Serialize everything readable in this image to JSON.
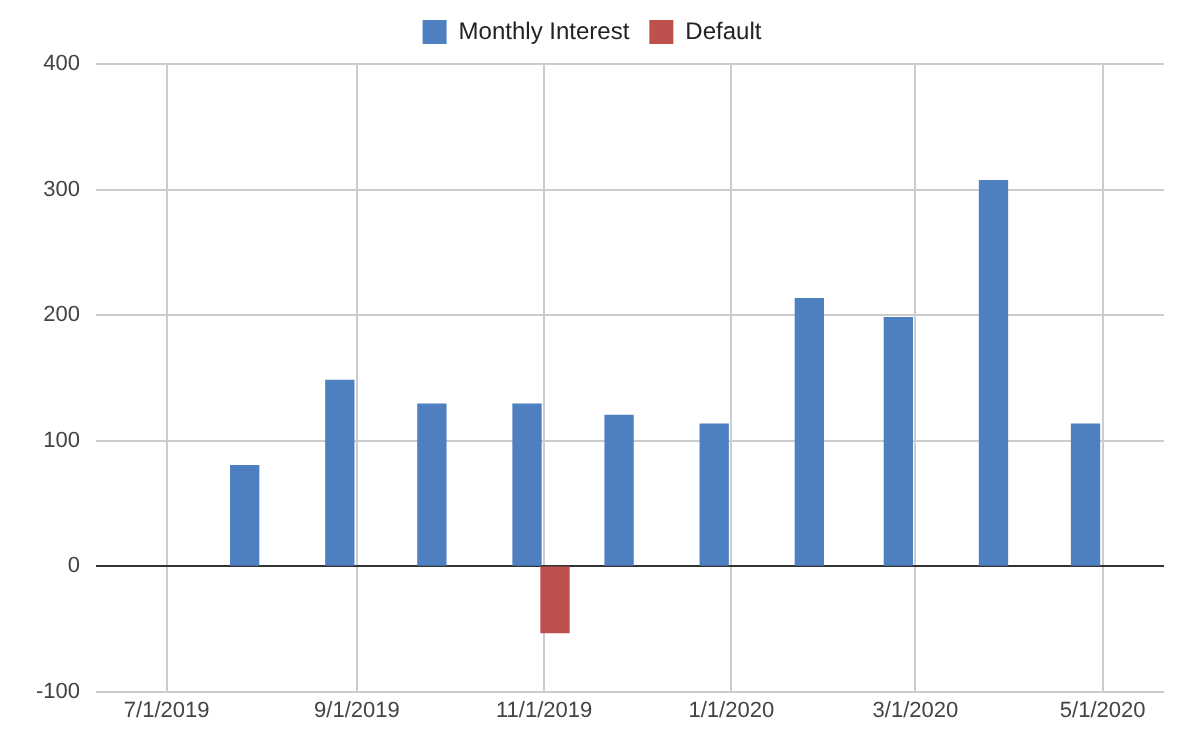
{
  "chart_data": {
    "type": "bar",
    "x": [
      "2019-07-31",
      "2019-08-31",
      "2019-09-30",
      "2019-10-31",
      "2019-11-30",
      "2019-12-31",
      "2020-01-31",
      "2020-02-29",
      "2020-03-31",
      "2020-04-30"
    ],
    "series": [
      {
        "name": "Monthly Interest",
        "color": "#4e7fc0",
        "values": [
          80,
          148,
          129,
          129,
          120,
          113,
          213,
          198,
          307,
          113
        ]
      },
      {
        "name": "Default",
        "color": "#c0504d",
        "values": [
          null,
          null,
          null,
          -53,
          null,
          null,
          null,
          null,
          null,
          null
        ]
      }
    ],
    "xlim": [
      "2019-06-08",
      "2020-05-21"
    ],
    "xticks": [
      {
        "value": "2019-07-01",
        "label": "7/1/2019"
      },
      {
        "value": "2019-09-01",
        "label": "9/1/2019"
      },
      {
        "value": "2019-11-01",
        "label": "11/1/2019"
      },
      {
        "value": "2020-01-01",
        "label": "1/1/2020"
      },
      {
        "value": "2020-03-01",
        "label": "3/1/2020"
      },
      {
        "value": "2020-05-01",
        "label": "5/1/2020"
      }
    ],
    "ylim": [
      -100,
      400
    ],
    "yticks": [
      -100,
      0,
      100,
      200,
      300,
      400
    ],
    "grid": true,
    "legend": "top"
  }
}
